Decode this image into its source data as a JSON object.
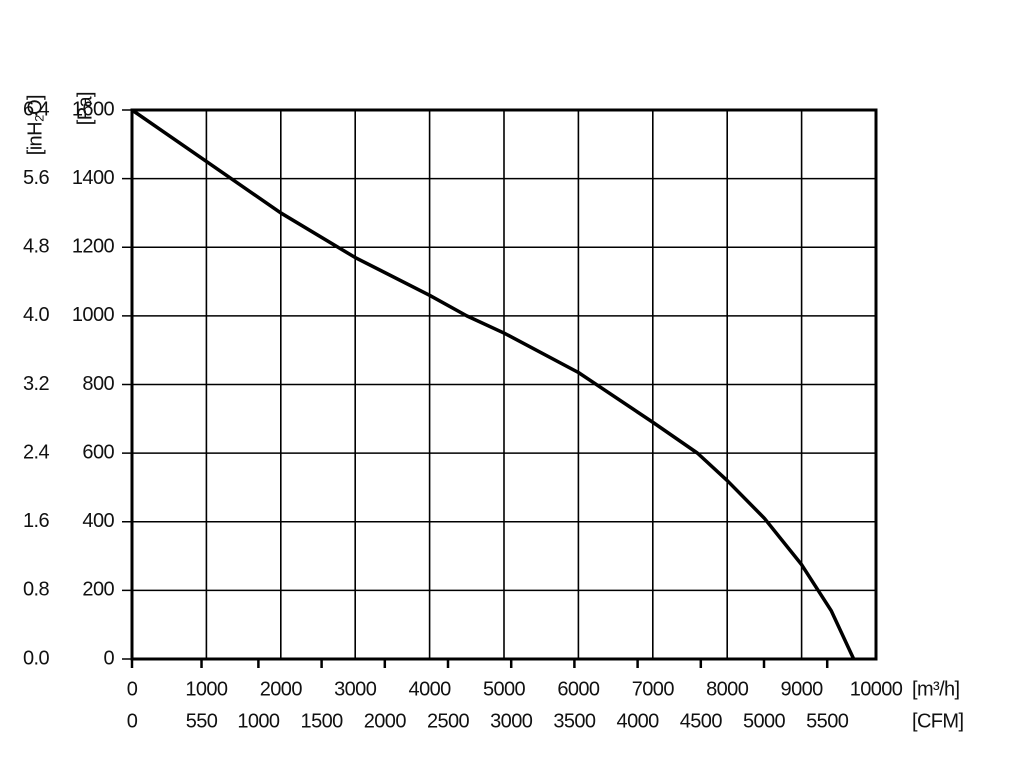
{
  "chart_data": {
    "type": "line",
    "x_label": "[m³/h]",
    "x2_label": "[CFM]",
    "y_label": "[Pa]",
    "y2_label": "[inH₂O]",
    "x": [
      0,
      1000,
      2000,
      3000,
      4000,
      4500,
      5000,
      6000,
      7000,
      7600,
      8000,
      8500,
      9000,
      9400,
      9700
    ],
    "series": [
      {
        "color": "#000000",
        "values": [
          1600,
          1450,
          1300,
          1170,
          1060,
          1000,
          950,
          835,
          690,
          600,
          520,
          410,
          275,
          140,
          0
        ]
      }
    ],
    "xlim": [
      0,
      10000
    ],
    "xticks": [
      0,
      1000,
      2000,
      3000,
      4000,
      5000,
      6000,
      7000,
      8000,
      9000,
      10000
    ],
    "x2lim": [
      0,
      5886
    ],
    "x2ticks": [
      0,
      550,
      1000,
      1500,
      2000,
      2500,
      3000,
      3500,
      4000,
      4500,
      5000,
      5500
    ],
    "ylim": [
      0,
      1600
    ],
    "yticks": [
      0,
      200,
      400,
      600,
      800,
      1000,
      1200,
      1400,
      1600
    ],
    "y2lim": [
      0,
      6.4
    ],
    "y2ticks": [
      {
        "value": 0,
        "label": "0.0"
      },
      0.8,
      1.6,
      2.4,
      3.2,
      {
        "value": 4,
        "label": "4.0"
      },
      4.8,
      5.6,
      6.4
    ],
    "grid": true
  }
}
